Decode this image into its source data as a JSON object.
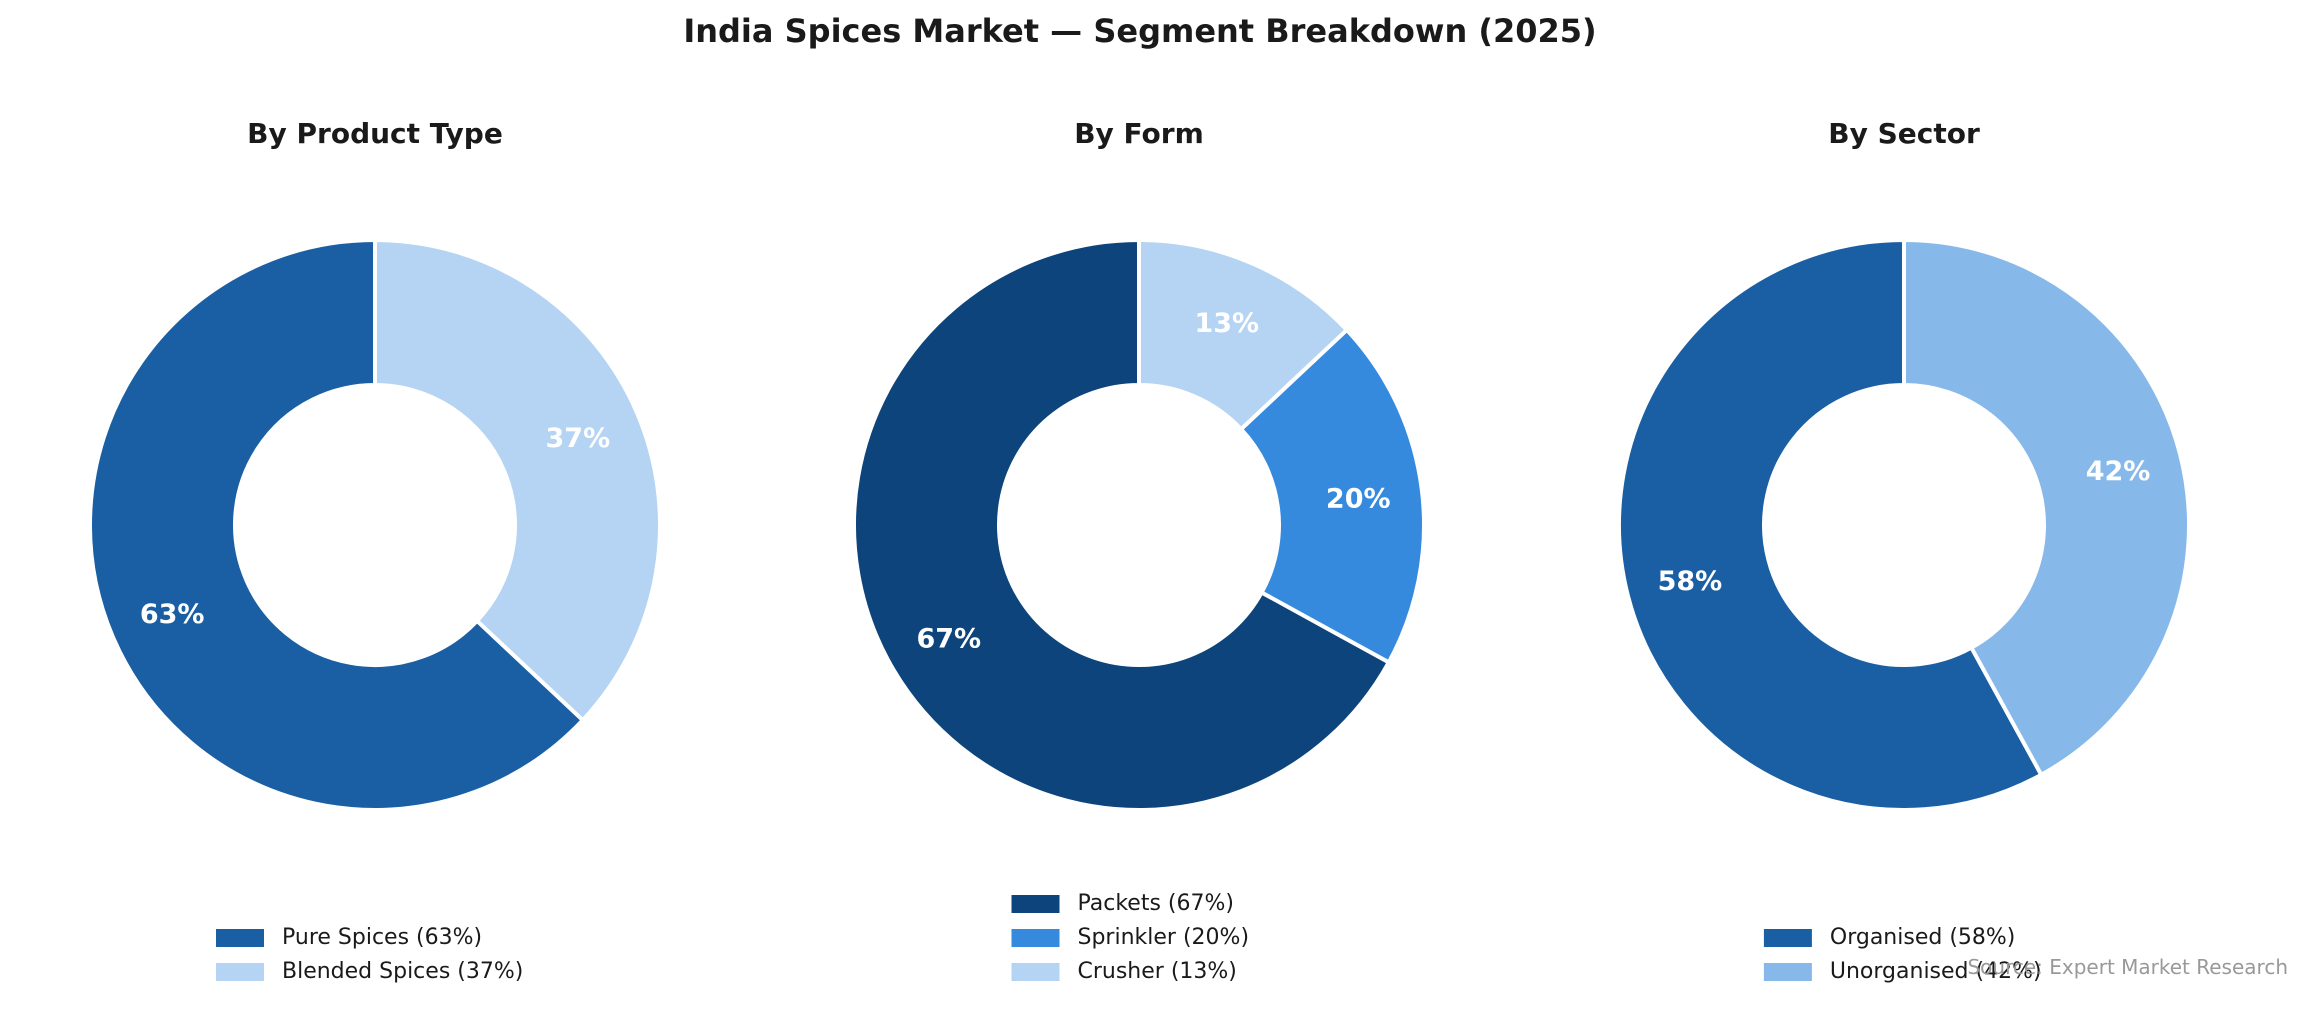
{
  "chart_data": {
    "type": "pie",
    "title": "India Spices Market — Segment Breakdown (2025)",
    "source": "Source: Expert Market Research",
    "donut": true,
    "panels": [
      {
        "title": "By Product Type",
        "slices": [
          {
            "label": "Pure Spices",
            "value": 63,
            "value_label": "63%",
            "legend": "Pure Spices (63%)",
            "color": "#1a5fa3"
          },
          {
            "label": "Blended Spices",
            "value": 37,
            "value_label": "37%",
            "legend": "Blended Spices (37%)",
            "color": "#b5d4f3"
          }
        ]
      },
      {
        "title": "By Form",
        "slices": [
          {
            "label": "Packets",
            "value": 67,
            "value_label": "67%",
            "legend": "Packets (67%)",
            "color": "#0d447b"
          },
          {
            "label": "Sprinkler",
            "value": 20,
            "value_label": "20%",
            "legend": "Sprinkler (20%)",
            "color": "#368ade"
          },
          {
            "label": "Crusher",
            "value": 13,
            "value_label": "13%",
            "legend": "Crusher (13%)",
            "color": "#b5d4f3"
          }
        ]
      },
      {
        "title": "By Sector",
        "slices": [
          {
            "label": "Organised",
            "value": 58,
            "value_label": "58%",
            "legend": "Organised (58%)",
            "color": "#1a5fa3"
          },
          {
            "label": "Unorganised",
            "value": 42,
            "value_label": "42%",
            "legend": "Unorganised (42%)",
            "color": "#86b8ea"
          }
        ]
      }
    ]
  }
}
